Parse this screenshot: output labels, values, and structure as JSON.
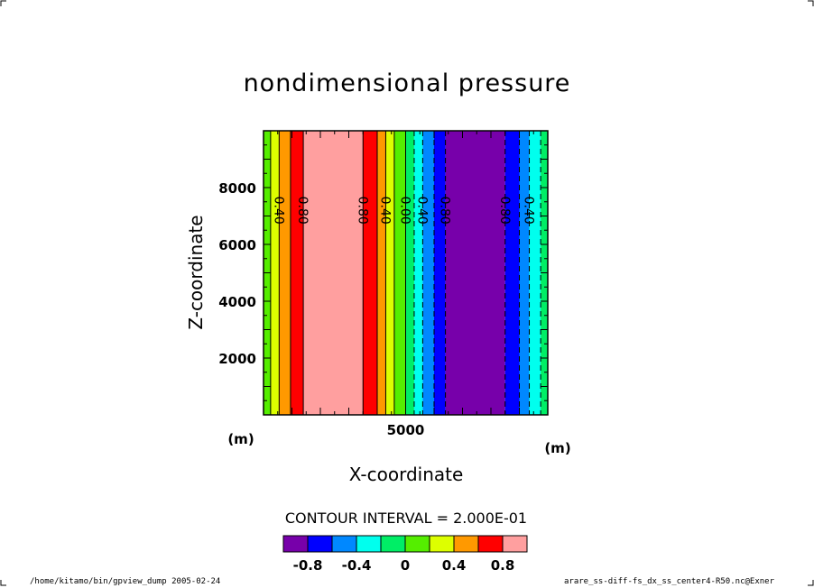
{
  "chart_data": {
    "type": "contour",
    "title": "nondimensional pressure",
    "xlabel": "X-coordinate",
    "ylabel": "Z-coordinate",
    "x_unit": "(m)",
    "y_unit": "(m)",
    "xlim": [
      0,
      10000
    ],
    "ylim": [
      0,
      10000
    ],
    "x_ticks_major": [
      5000
    ],
    "y_ticks_major": [
      2000,
      4000,
      6000,
      8000
    ],
    "contour_interval_text": "CONTOUR INTERVAL = 2.000E-01",
    "bands": [
      {
        "x0": 0,
        "x1": 250,
        "color": "#55ee00"
      },
      {
        "x0": 250,
        "x1": 550,
        "color": "#ddff00"
      },
      {
        "x0": 550,
        "x1": 950,
        "color": "#ff9900"
      },
      {
        "x0": 950,
        "x1": 1400,
        "color": "#ff0000"
      },
      {
        "x0": 1400,
        "x1": 3500,
        "color": "#ff9f9f"
      },
      {
        "x0": 3500,
        "x1": 4000,
        "color": "#ff0000"
      },
      {
        "x0": 4000,
        "x1": 4300,
        "color": "#ff9900"
      },
      {
        "x0": 4300,
        "x1": 4600,
        "color": "#ddff00"
      },
      {
        "x0": 4600,
        "x1": 5000,
        "color": "#55ee00"
      },
      {
        "x0": 5000,
        "x1": 5300,
        "color": "#00ee66"
      },
      {
        "x0": 5300,
        "x1": 5600,
        "color": "#00ffee"
      },
      {
        "x0": 5600,
        "x1": 6000,
        "color": "#0088ff"
      },
      {
        "x0": 6000,
        "x1": 6400,
        "color": "#0000ff"
      },
      {
        "x0": 6400,
        "x1": 8500,
        "color": "#7700aa"
      },
      {
        "x0": 8500,
        "x1": 9000,
        "color": "#0000ff"
      },
      {
        "x0": 9000,
        "x1": 9350,
        "color": "#0088ff"
      },
      {
        "x0": 9350,
        "x1": 9750,
        "color": "#00ffee"
      },
      {
        "x0": 9750,
        "x1": 10000,
        "color": "#00ee66"
      }
    ],
    "contour_lines": [
      {
        "x": 250,
        "style": "solid"
      },
      {
        "x": 550,
        "style": "solid"
      },
      {
        "x": 950,
        "style": "solid"
      },
      {
        "x": 1400,
        "style": "solid"
      },
      {
        "x": 3500,
        "style": "solid"
      },
      {
        "x": 4000,
        "style": "solid"
      },
      {
        "x": 4300,
        "style": "solid"
      },
      {
        "x": 4600,
        "style": "solid"
      },
      {
        "x": 5000,
        "style": "solid"
      },
      {
        "x": 5300,
        "style": "dashed"
      },
      {
        "x": 5600,
        "style": "dashed"
      },
      {
        "x": 6000,
        "style": "dashed"
      },
      {
        "x": 6400,
        "style": "dashed"
      },
      {
        "x": 8500,
        "style": "dashed"
      },
      {
        "x": 9000,
        "style": "dashed"
      },
      {
        "x": 9350,
        "style": "dashed"
      },
      {
        "x": 9750,
        "style": "dashed"
      }
    ],
    "contour_labels": [
      {
        "x": 550,
        "z": 7200,
        "text": "0.40"
      },
      {
        "x": 1400,
        "z": 7200,
        "text": "0.80"
      },
      {
        "x": 3500,
        "z": 7200,
        "text": "0.80"
      },
      {
        "x": 4300,
        "z": 7200,
        "text": "0.40"
      },
      {
        "x": 5000,
        "z": 7200,
        "text": "0.00"
      },
      {
        "x": 5600,
        "z": 7200,
        "text": "0.40"
      },
      {
        "x": 6400,
        "z": 7200,
        "text": "0.80"
      },
      {
        "x": 8500,
        "z": 7200,
        "text": "0.80"
      },
      {
        "x": 9350,
        "z": 7200,
        "text": "0.40"
      }
    ],
    "colorbar": {
      "colors": [
        "#7700aa",
        "#0000ff",
        "#0088ff",
        "#00ffee",
        "#00ee66",
        "#55ee00",
        "#ddff00",
        "#ff9900",
        "#ff0000",
        "#ff9f9f"
      ],
      "tick_labels": [
        "-0.8",
        "-0.4",
        "0",
        "0.4",
        "0.8"
      ]
    }
  },
  "footer": {
    "left": "/home/kitamo/bin/gpview_dump  2005-02-24",
    "right": "arare_ss-diff-fs_dx_ss_center4-R50.nc@Exner"
  }
}
